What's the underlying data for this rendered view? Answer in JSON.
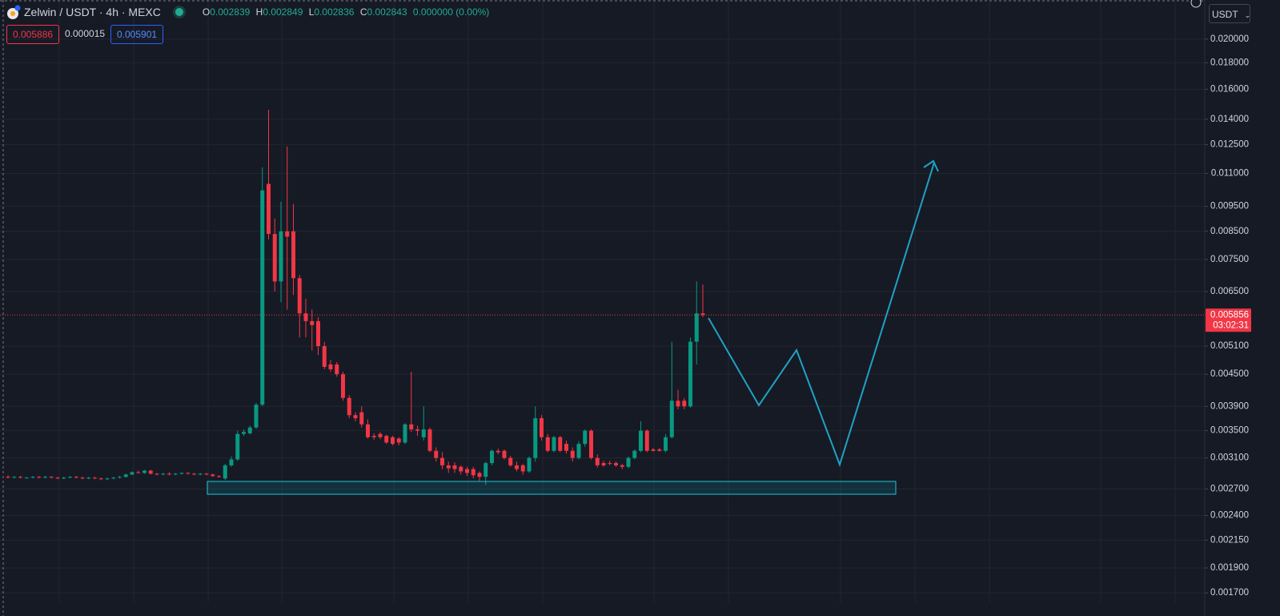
{
  "header": {
    "title": "Zelwin / USDT · 4h · MEXC",
    "ohlc": [
      [
        "O",
        "0.002839"
      ],
      [
        "H",
        "0.002849"
      ],
      [
        "L",
        "0.002836"
      ],
      [
        "C",
        "0.002843"
      ]
    ],
    "change": "0.000000 (0.00%)",
    "sell": "0.005886",
    "spread": "0.000015",
    "buy": "0.005901",
    "currency": "USDT"
  },
  "chart_data": {
    "type": "candlestick",
    "log_scale": true,
    "grid": true,
    "up_color": "#089981",
    "down_color": "#f23645",
    "ylim": [
      0.00163,
      0.0238
    ],
    "yticks": [
      {
        "value": 0.02,
        "label": "0.020000"
      },
      {
        "value": 0.018,
        "label": "0.018000"
      },
      {
        "value": 0.016,
        "label": "0.016000"
      },
      {
        "value": 0.014,
        "label": "0.014000"
      },
      {
        "value": 0.0125,
        "label": "0.012500"
      },
      {
        "value": 0.011,
        "label": "0.011000"
      },
      {
        "value": 0.0095,
        "label": "0.009500"
      },
      {
        "value": 0.0085,
        "label": "0.008500"
      },
      {
        "value": 0.0075,
        "label": "0.007500"
      },
      {
        "value": 0.0065,
        "label": "0.006500"
      },
      {
        "value": 0.0051,
        "label": "0.005100"
      },
      {
        "value": 0.0045,
        "label": "0.004500"
      },
      {
        "value": 0.0039,
        "label": "0.003900"
      },
      {
        "value": 0.0035,
        "label": "0.003500"
      },
      {
        "value": 0.0031,
        "label": "0.003100"
      },
      {
        "value": 0.0027,
        "label": "0.002700"
      },
      {
        "value": 0.0024,
        "label": "0.002400"
      },
      {
        "value": 0.00215,
        "label": "0.002150"
      },
      {
        "value": 0.0019,
        "label": "0.001900"
      },
      {
        "value": 0.0017,
        "label": "0.001700"
      }
    ],
    "last_price": 0.005856,
    "countdown": "03:02:31",
    "ohlc": [
      [
        0.00285,
        0.00287,
        0.00283,
        0.00284
      ],
      [
        0.00284,
        0.00286,
        0.00283,
        0.00285
      ],
      [
        0.00285,
        0.00286,
        0.00283,
        0.00284
      ],
      [
        0.00284,
        0.00285,
        0.00283,
        0.00284
      ],
      [
        0.00284,
        0.00286,
        0.00283,
        0.00285
      ],
      [
        0.00285,
        0.00286,
        0.00283,
        0.00284
      ],
      [
        0.00284,
        0.00286,
        0.00283,
        0.00285
      ],
      [
        0.00285,
        0.00286,
        0.00283,
        0.00284
      ],
      [
        0.00284,
        0.00285,
        0.00282,
        0.00283
      ],
      [
        0.00283,
        0.00285,
        0.00282,
        0.00284
      ],
      [
        0.00284,
        0.00286,
        0.00283,
        0.00285
      ],
      [
        0.00285,
        0.00286,
        0.00283,
        0.00284
      ],
      [
        0.00284,
        0.00285,
        0.00282,
        0.00283
      ],
      [
        0.00283,
        0.00285,
        0.00282,
        0.00284
      ],
      [
        0.00284,
        0.00285,
        0.00282,
        0.00283
      ],
      [
        0.00283,
        0.00284,
        0.00281,
        0.00282
      ],
      [
        0.00282,
        0.00284,
        0.00281,
        0.00283
      ],
      [
        0.00283,
        0.00285,
        0.00282,
        0.00284
      ],
      [
        0.00284,
        0.00286,
        0.00283,
        0.00285
      ],
      [
        0.00285,
        0.00289,
        0.00284,
        0.00288
      ],
      [
        0.00288,
        0.00292,
        0.00287,
        0.00291
      ],
      [
        0.00291,
        0.00293,
        0.00289,
        0.0029
      ],
      [
        0.0029,
        0.00294,
        0.00289,
        0.00293
      ],
      [
        0.00293,
        0.00294,
        0.00288,
        0.00289
      ],
      [
        0.00289,
        0.0029,
        0.00287,
        0.00288
      ],
      [
        0.00288,
        0.0029,
        0.00287,
        0.00289
      ],
      [
        0.00289,
        0.00291,
        0.00287,
        0.00288
      ],
      [
        0.00288,
        0.0029,
        0.00287,
        0.00289
      ],
      [
        0.00289,
        0.00291,
        0.00288,
        0.0029
      ],
      [
        0.0029,
        0.00291,
        0.00288,
        0.00289
      ],
      [
        0.00289,
        0.0029,
        0.00287,
        0.00288
      ],
      [
        0.00288,
        0.0029,
        0.00287,
        0.00289
      ],
      [
        0.00289,
        0.0029,
        0.00287,
        0.00288
      ],
      [
        0.00288,
        0.00289,
        0.00285,
        0.00286
      ],
      [
        0.00286,
        0.00287,
        0.00284,
        0.00285
      ],
      [
        0.00283,
        0.00302,
        0.00281,
        0.003
      ],
      [
        0.003,
        0.00312,
        0.00298,
        0.00308
      ],
      [
        0.00308,
        0.0035,
        0.00306,
        0.00345
      ],
      [
        0.00345,
        0.00352,
        0.00342,
        0.00348
      ],
      [
        0.00346,
        0.00358,
        0.00344,
        0.00355
      ],
      [
        0.00355,
        0.00396,
        0.00353,
        0.00393
      ],
      [
        0.00393,
        0.0113,
        0.0039,
        0.0102
      ],
      [
        0.0105,
        0.0146,
        0.0082,
        0.0084
      ],
      [
        0.0084,
        0.009,
        0.0065,
        0.0068
      ],
      [
        0.0068,
        0.0097,
        0.0062,
        0.0085
      ],
      [
        0.0085,
        0.0124,
        0.006,
        0.0083
      ],
      [
        0.0085,
        0.0096,
        0.0064,
        0.0069
      ],
      [
        0.0069,
        0.007,
        0.0053,
        0.0059
      ],
      [
        0.0059,
        0.0063,
        0.0053,
        0.0057
      ],
      [
        0.0057,
        0.006,
        0.005,
        0.0056
      ],
      [
        0.0057,
        0.0058,
        0.0049,
        0.0051
      ],
      [
        0.0051,
        0.0052,
        0.0046,
        0.00465
      ],
      [
        0.0047,
        0.0048,
        0.00455,
        0.0046
      ],
      [
        0.0047,
        0.00475,
        0.00445,
        0.0045
      ],
      [
        0.0045,
        0.00455,
        0.004,
        0.00405
      ],
      [
        0.00405,
        0.0041,
        0.0037,
        0.00375
      ],
      [
        0.00375,
        0.0038,
        0.00365,
        0.0037
      ],
      [
        0.0038,
        0.0039,
        0.00355,
        0.0036
      ],
      [
        0.0036,
        0.00368,
        0.00338,
        0.0034
      ],
      [
        0.00342,
        0.00346,
        0.00336,
        0.0034
      ],
      [
        0.00345,
        0.00348,
        0.00337,
        0.0034
      ],
      [
        0.00342,
        0.00344,
        0.0033,
        0.00332
      ],
      [
        0.0034,
        0.00342,
        0.00328,
        0.0033
      ],
      [
        0.00338,
        0.0034,
        0.00328,
        0.00332
      ],
      [
        0.00332,
        0.00362,
        0.0033,
        0.0036
      ],
      [
        0.0036,
        0.00455,
        0.00348,
        0.00352
      ],
      [
        0.00352,
        0.00358,
        0.00342,
        0.0035
      ],
      [
        0.0034,
        0.0039,
        0.00335,
        0.00352
      ],
      [
        0.00352,
        0.00355,
        0.00318,
        0.0032
      ],
      [
        0.0032,
        0.00325,
        0.00305,
        0.0031
      ],
      [
        0.0031,
        0.00318,
        0.00295,
        0.003
      ],
      [
        0.003,
        0.00305,
        0.0029,
        0.00296
      ],
      [
        0.003,
        0.00304,
        0.0029,
        0.00295
      ],
      [
        0.00298,
        0.003,
        0.00288,
        0.00292
      ],
      [
        0.00295,
        0.00298,
        0.00286,
        0.0029
      ],
      [
        0.00295,
        0.00298,
        0.00283,
        0.00287
      ],
      [
        0.0029,
        0.00292,
        0.0028,
        0.00285
      ],
      [
        0.00285,
        0.00305,
        0.00275,
        0.00303
      ],
      [
        0.00303,
        0.00322,
        0.003,
        0.0032
      ],
      [
        0.0032,
        0.00323,
        0.00315,
        0.00318
      ],
      [
        0.0032,
        0.00322,
        0.00308,
        0.0031
      ],
      [
        0.0031,
        0.00313,
        0.00298,
        0.003
      ],
      [
        0.003,
        0.00305,
        0.00292,
        0.00295
      ],
      [
        0.003,
        0.00302,
        0.00288,
        0.00292
      ],
      [
        0.00292,
        0.00312,
        0.0029,
        0.0031
      ],
      [
        0.0031,
        0.0039,
        0.00305,
        0.0037
      ],
      [
        0.0037,
        0.00375,
        0.00335,
        0.0034
      ],
      [
        0.0034,
        0.00345,
        0.00318,
        0.0032
      ],
      [
        0.0032,
        0.00342,
        0.00318,
        0.0034
      ],
      [
        0.0034,
        0.00342,
        0.00318,
        0.0032
      ],
      [
        0.0033,
        0.00335,
        0.00316,
        0.0032
      ],
      [
        0.0032,
        0.00325,
        0.00305,
        0.0031
      ],
      [
        0.0031,
        0.00334,
        0.00308,
        0.0033
      ],
      [
        0.0033,
        0.00352,
        0.00326,
        0.0035
      ],
      [
        0.0035,
        0.00352,
        0.00308,
        0.0031
      ],
      [
        0.0031,
        0.00315,
        0.00297,
        0.003
      ],
      [
        0.00303,
        0.00306,
        0.00298,
        0.003
      ],
      [
        0.00303,
        0.00306,
        0.003,
        0.00302
      ],
      [
        0.00303,
        0.00305,
        0.00298,
        0.003
      ],
      [
        0.003,
        0.00302,
        0.00295,
        0.00298
      ],
      [
        0.00298,
        0.00312,
        0.00296,
        0.0031
      ],
      [
        0.0031,
        0.00322,
        0.00308,
        0.0032
      ],
      [
        0.0032,
        0.00365,
        0.00318,
        0.0035
      ],
      [
        0.0035,
        0.00352,
        0.00318,
        0.0032
      ],
      [
        0.00322,
        0.00324,
        0.00319,
        0.0032
      ],
      [
        0.00322,
        0.00324,
        0.00319,
        0.0032
      ],
      [
        0.0032,
        0.00345,
        0.00318,
        0.0034
      ],
      [
        0.0034,
        0.0052,
        0.00338,
        0.004
      ],
      [
        0.004,
        0.0042,
        0.00385,
        0.0039
      ],
      [
        0.004,
        0.00405,
        0.00385,
        0.0039
      ],
      [
        0.0039,
        0.0053,
        0.00388,
        0.0052
      ],
      [
        0.0052,
        0.0068,
        0.0047,
        0.0059
      ],
      [
        0.0059,
        0.0067,
        0.0058,
        0.00586
      ]
    ]
  }
}
